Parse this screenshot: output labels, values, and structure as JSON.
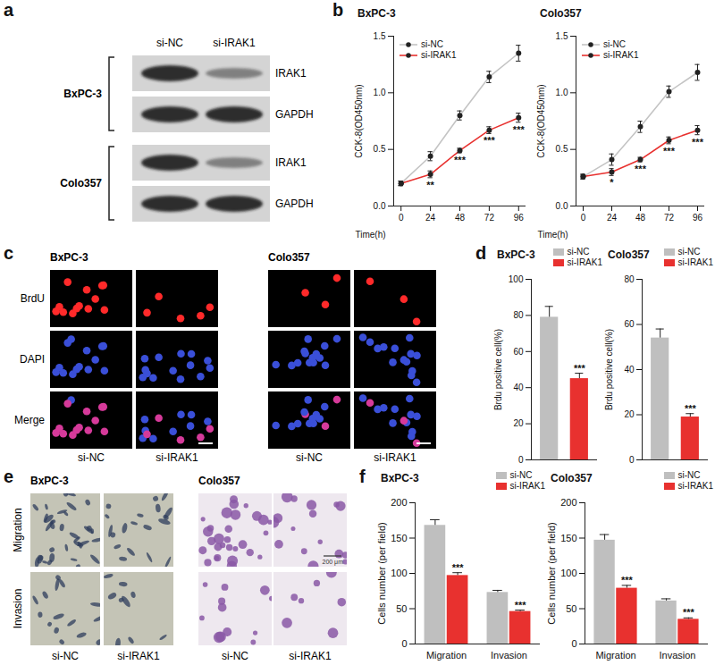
{
  "chart_data": [
    {
      "type": "line",
      "title": "BxPC-3",
      "xlabel": "Time(h)",
      "ylabel": "CCK-8(OD450nm)",
      "x": [
        0,
        24,
        48,
        72,
        96
      ],
      "xlim": [
        -6,
        102
      ],
      "xticks": [
        0,
        24,
        48,
        72,
        96
      ],
      "ylim": [
        0,
        1.5
      ],
      "yticks": [
        {
          "value": 0,
          "label": "0.0"
        },
        0.5,
        {
          "value": 1,
          "label": "1.0"
        },
        1.5
      ],
      "legend": "top-left",
      "marker": "circle",
      "series": [
        {
          "name": "si-NC",
          "color": "#c4c4c4",
          "values": [
            0.2,
            0.44,
            0.8,
            1.14,
            1.35
          ],
          "errors": [
            0.02,
            0.04,
            0.04,
            0.05,
            0.07
          ]
        },
        {
          "name": "si-IRAK1",
          "color": "#e8312f",
          "values": [
            0.2,
            0.28,
            0.49,
            0.67,
            0.78
          ],
          "errors": [
            0.02,
            0.03,
            0.02,
            0.03,
            0.04
          ],
          "significance": [
            null,
            "**",
            "***",
            "***",
            "***"
          ]
        }
      ]
    },
    {
      "type": "line",
      "title": "Colo357",
      "xlabel": "Time(h)",
      "ylabel": "CCK-8(OD450nm)",
      "x": [
        0,
        24,
        48,
        72,
        96
      ],
      "xlim": [
        -6,
        102
      ],
      "xticks": [
        0,
        24,
        48,
        72,
        96
      ],
      "ylim": [
        0,
        1.5
      ],
      "yticks": [
        {
          "value": 0,
          "label": "0.0"
        },
        0.5,
        {
          "value": 1,
          "label": "1.0"
        },
        1.5
      ],
      "legend": "top-left",
      "marker": "circle",
      "series": [
        {
          "name": "si-NC",
          "color": "#c4c4c4",
          "values": [
            0.26,
            0.41,
            0.7,
            1.01,
            1.18
          ],
          "errors": [
            0.02,
            0.05,
            0.05,
            0.05,
            0.07
          ]
        },
        {
          "name": "si-IRAK1",
          "color": "#e8312f",
          "values": [
            0.26,
            0.3,
            0.41,
            0.58,
            0.67
          ],
          "errors": [
            0.02,
            0.03,
            0.02,
            0.03,
            0.04
          ],
          "significance": [
            null,
            "*",
            "***",
            "***",
            "***"
          ]
        }
      ]
    },
    {
      "type": "bar",
      "title": "BxPC-3",
      "ylabel": "Brdu positive cell(%)",
      "categories": [
        "si-NC",
        "si-IRAK1"
      ],
      "values": [
        79,
        45
      ],
      "errors": [
        6,
        3
      ],
      "significance": [
        null,
        "***"
      ],
      "colors": [
        "#bfbfbf",
        "#e8312f"
      ],
      "ylim": [
        0,
        100
      ],
      "yticks": [
        0,
        20,
        40,
        60,
        80,
        100
      ],
      "tick_labels": "y",
      "legend": "top-right"
    },
    {
      "type": "bar",
      "title": "Colo357",
      "ylabel": "Brdu positive cell(%)",
      "categories": [
        "si-NC",
        "si-IRAK1"
      ],
      "values": [
        54,
        19
      ],
      "errors": [
        4,
        1.5
      ],
      "significance": [
        null,
        "***"
      ],
      "colors": [
        "#bfbfbf",
        "#e8312f"
      ],
      "ylim": [
        0,
        80
      ],
      "yticks": [
        0,
        20,
        40,
        60,
        80
      ],
      "tick_labels": "y",
      "legend": "top-right"
    },
    {
      "type": "bar",
      "title": "BxPC-3",
      "ylabel": "Cells number (per field)",
      "categories": [
        "Migration",
        "Invasion"
      ],
      "ylim": [
        0,
        200
      ],
      "yticks": [
        0,
        50,
        100,
        150,
        200
      ],
      "legend": "top-right",
      "series": [
        {
          "name": "si-NC",
          "color": "#bfbfbf",
          "values": [
            168,
            73
          ],
          "errors": [
            8,
            3
          ]
        },
        {
          "name": "si-IRAK1",
          "color": "#e8312f",
          "values": [
            97,
            46
          ],
          "errors": [
            4,
            2
          ],
          "significance": [
            "***",
            "***"
          ]
        }
      ]
    },
    {
      "type": "bar",
      "title": "Colo357",
      "ylabel": "Cells number (per field)",
      "categories": [
        "Migration",
        "Invasion"
      ],
      "ylim": [
        0,
        200
      ],
      "yticks": [
        0,
        50,
        100,
        150,
        200
      ],
      "legend": "top-right",
      "series": [
        {
          "name": "si-NC",
          "color": "#bfbfbf",
          "values": [
            147,
            61
          ],
          "errors": [
            8,
            3
          ]
        },
        {
          "name": "si-IRAK1",
          "color": "#e8312f",
          "values": [
            79,
            35
          ],
          "errors": [
            4,
            2
          ],
          "significance": [
            "***",
            "***"
          ]
        }
      ]
    }
  ],
  "figure": {
    "letters": [
      "a",
      "b",
      "c",
      "d",
      "e",
      "f"
    ],
    "blot": {
      "cell_lines": [
        "BxPC-3",
        "Colo357"
      ],
      "lanes": [
        "si-NC",
        "si-IRAK1"
      ],
      "proteins": [
        "IRAK1",
        "GAPDH"
      ]
    },
    "brdu": {
      "cell_lines": [
        "BxPC-3",
        "Colo357"
      ],
      "channels": [
        "BrdU",
        "DAPI",
        "Merge"
      ],
      "conditions": [
        "si-NC",
        "si-IRAK1"
      ]
    },
    "transwell": {
      "cell_lines": [
        "BxPC-3",
        "Colo357"
      ],
      "assays": [
        "Migration",
        "Invasion"
      ],
      "conditions": [
        "si-NC",
        "si-IRAK1"
      ],
      "scale_bar": "200 μm"
    }
  }
}
